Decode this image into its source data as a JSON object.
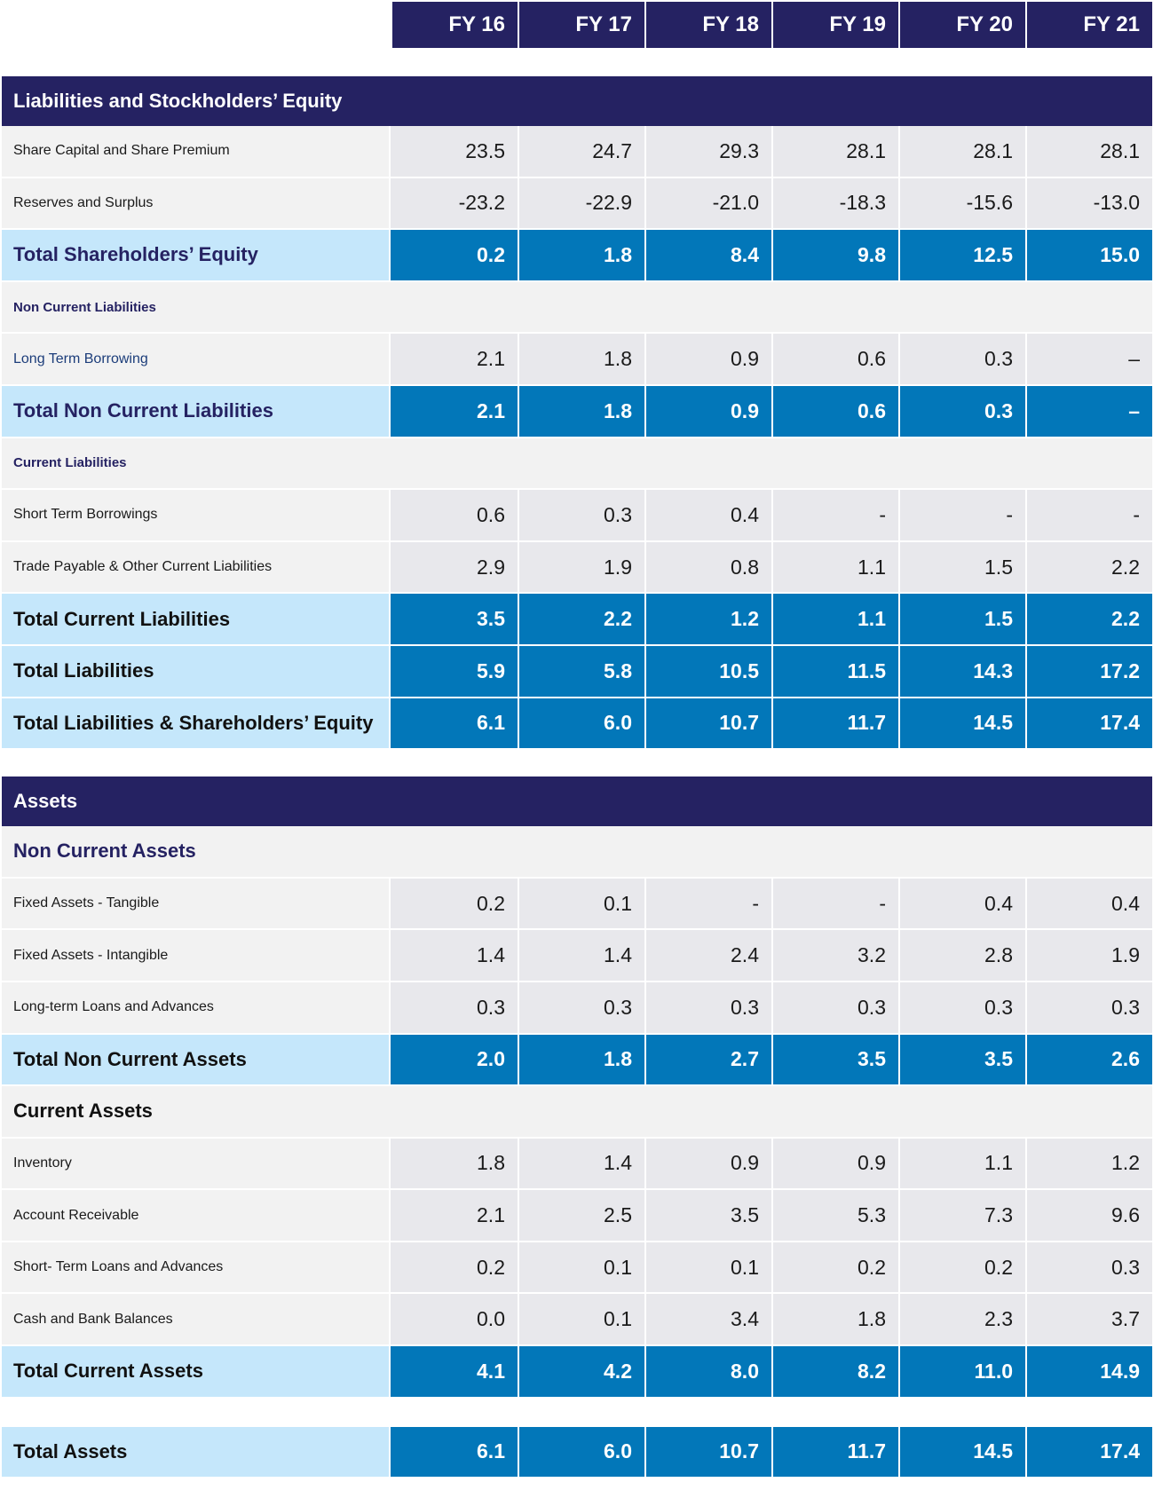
{
  "years": [
    "FY 16",
    "FY 17",
    "FY 18",
    "FY 19",
    "FY 20",
    "FY 21"
  ],
  "liabilities": {
    "title": "Liabilities and Stockholders’ Equity",
    "rows": [
      {
        "type": "item",
        "label": "Share Capital and Share Premium",
        "values": [
          "23.5",
          "24.7",
          "29.3",
          "28.1",
          "28.1",
          "28.1"
        ]
      },
      {
        "type": "item",
        "label": "Reserves and Surplus",
        "values": [
          "-23.2",
          "-22.9",
          "-21.0",
          "-18.3",
          "-15.6",
          "-13.0"
        ]
      },
      {
        "type": "total",
        "label": "Total Shareholders’ Equity",
        "values": [
          "0.2",
          "1.8",
          "8.4",
          "9.8",
          "12.5",
          "15.0"
        ]
      },
      {
        "type": "sub",
        "label": "Non Current Liabilities"
      },
      {
        "type": "item",
        "label": "Long Term Borrowing",
        "values": [
          "2.1",
          "1.8",
          "0.9",
          "0.6",
          "0.3",
          "–"
        ]
      },
      {
        "type": "total",
        "label": "Total Non Current Liabilities",
        "values": [
          "2.1",
          "1.8",
          "0.9",
          "0.6",
          "0.3",
          "–"
        ]
      },
      {
        "type": "sub",
        "label": "Current Liabilities"
      },
      {
        "type": "item",
        "label": "Short Term Borrowings",
        "values": [
          "0.6",
          "0.3",
          "0.4",
          "-",
          "-",
          "-"
        ]
      },
      {
        "type": "item",
        "label": "Trade Payable & Other Current Liabilities",
        "values": [
          "2.9",
          "1.9",
          "0.8",
          "1.1",
          "1.5",
          "2.2"
        ]
      },
      {
        "type": "total-dark",
        "label": "Total Current Liabilities",
        "values": [
          "3.5",
          "2.2",
          "1.2",
          "1.1",
          "1.5",
          "2.2"
        ]
      },
      {
        "type": "total-dark",
        "label": "Total Liabilities",
        "values": [
          "5.9",
          "5.8",
          "10.5",
          "11.5",
          "14.3",
          "17.2"
        ]
      },
      {
        "type": "total-dark",
        "label": "Total Liabilities & Shareholders’ Equity",
        "values": [
          "6.1",
          "6.0",
          "10.7",
          "11.7",
          "14.5",
          "17.4"
        ]
      }
    ]
  },
  "assets": {
    "title": "Assets",
    "rows": [
      {
        "type": "sub-lg",
        "label": "Non Current Assets"
      },
      {
        "type": "item",
        "label": "Fixed Assets - Tangible",
        "values": [
          "0.2",
          "0.1",
          "-",
          "-",
          "0.4",
          "0.4"
        ]
      },
      {
        "type": "item",
        "label": "Fixed Assets - Intangible",
        "values": [
          "1.4",
          "1.4",
          "2.4",
          "3.2",
          "2.8",
          "1.9"
        ]
      },
      {
        "type": "item",
        "label": "Long-term Loans and Advances",
        "values": [
          "0.3",
          "0.3",
          "0.3",
          "0.3",
          "0.3",
          "0.3"
        ]
      },
      {
        "type": "total-dark",
        "label": "Total Non Current Assets",
        "values": [
          "2.0",
          "1.8",
          "2.7",
          "3.5",
          "3.5",
          "2.6"
        ]
      },
      {
        "type": "sub-lg-dark",
        "label": "Current Assets"
      },
      {
        "type": "item",
        "label": "Inventory",
        "values": [
          "1.8",
          "1.4",
          "0.9",
          "0.9",
          "1.1",
          "1.2"
        ]
      },
      {
        "type": "item",
        "label": "Account Receivable",
        "values": [
          "2.1",
          "2.5",
          "3.5",
          "5.3",
          "7.3",
          "9.6"
        ]
      },
      {
        "type": "item",
        "label": "Short- Term Loans and Advances",
        "values": [
          "0.2",
          "0.1",
          "0.1",
          "0.2",
          "0.2",
          "0.3"
        ]
      },
      {
        "type": "item",
        "label": "Cash and Bank Balances",
        "values": [
          "0.0",
          "0.1",
          "3.4",
          "1.8",
          "2.3",
          "3.7"
        ]
      },
      {
        "type": "total-dark",
        "label": "Total Current Assets",
        "values": [
          "4.1",
          "4.2",
          "8.0",
          "8.2",
          "11.0",
          "14.9"
        ]
      }
    ]
  },
  "total_assets": {
    "label": "Total Assets",
    "values": [
      "6.1",
      "6.0",
      "10.7",
      "11.7",
      "14.5",
      "17.4"
    ]
  }
}
